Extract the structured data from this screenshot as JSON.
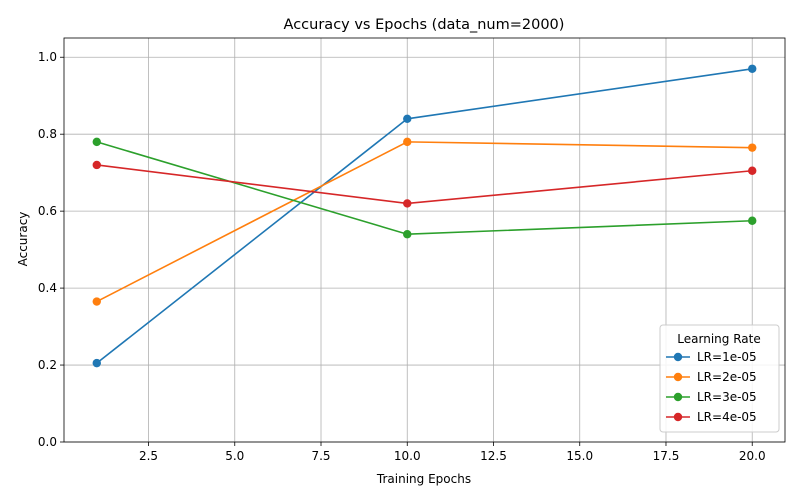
{
  "chart_data": {
    "type": "line",
    "title": "Accuracy vs Epochs (data_num=2000)",
    "xlabel": "Training Epochs",
    "ylabel": "Accuracy",
    "xlim": [
      0.05,
      20.95
    ],
    "ylim": [
      0.0,
      1.05
    ],
    "xticks": [
      2.5,
      5.0,
      7.5,
      10.0,
      12.5,
      15.0,
      17.5,
      20.0
    ],
    "xtick_labels": [
      "2.5",
      "5.0",
      "7.5",
      "10.0",
      "12.5",
      "15.0",
      "17.5",
      "20.0"
    ],
    "yticks": [
      0.0,
      0.2,
      0.4,
      0.6,
      0.8,
      1.0
    ],
    "ytick_labels": [
      "0.0",
      "0.2",
      "0.4",
      "0.6",
      "0.8",
      "1.0"
    ],
    "grid": true,
    "x": [
      1,
      10,
      20
    ],
    "legend": {
      "title": "Learning Rate",
      "placement": "lower-right"
    },
    "series": [
      {
        "name": "LR=1e-05",
        "color": "#1f77b4",
        "values": [
          0.205,
          0.84,
          0.97
        ]
      },
      {
        "name": "LR=2e-05",
        "color": "#ff7f0e",
        "values": [
          0.365,
          0.78,
          0.765
        ]
      },
      {
        "name": "LR=3e-05",
        "color": "#2ca02c",
        "values": [
          0.78,
          0.54,
          0.575
        ]
      },
      {
        "name": "LR=4e-05",
        "color": "#d62728",
        "values": [
          0.72,
          0.62,
          0.705
        ]
      }
    ]
  }
}
